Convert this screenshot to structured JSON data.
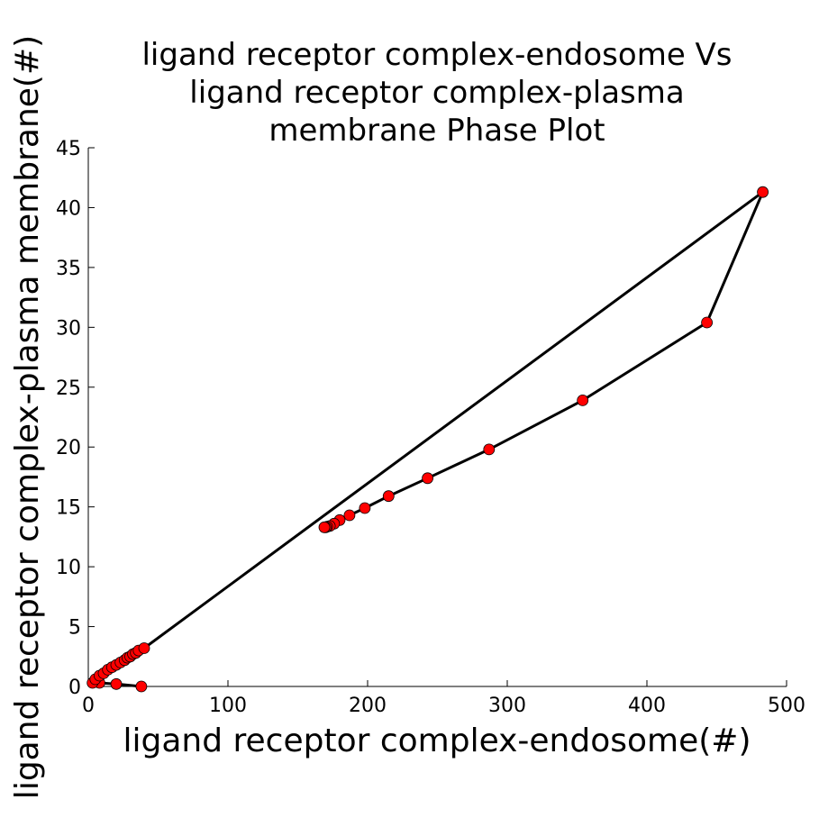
{
  "chart_data": {
    "type": "line",
    "title_lines": [
      "ligand receptor complex-endosome Vs",
      "ligand receptor complex-plasma",
      "membrane Phase Plot"
    ],
    "xlabel": "ligand receptor complex-endosome(#)",
    "ylabel": "ligand receptor complex-plasma membrane(#)",
    "xlim": [
      0,
      500
    ],
    "ylim": [
      0,
      45
    ],
    "xticks": [
      0,
      100,
      200,
      300,
      400,
      500
    ],
    "yticks": [
      0,
      5,
      10,
      15,
      20,
      25,
      30,
      35,
      40,
      45
    ],
    "grid": false,
    "legend": "none",
    "line_color": "#000000",
    "marker_color": "#ff0000",
    "series": [
      {
        "x": [
          38,
          20,
          8,
          3,
          5,
          8,
          11,
          14,
          17,
          20,
          23,
          26,
          28,
          30,
          32,
          34,
          36,
          40,
          483,
          443,
          354,
          287,
          243,
          215,
          198,
          187,
          180,
          176,
          173,
          171,
          170,
          169
        ],
        "y": [
          0,
          0.2,
          0.3,
          0.3,
          0.6,
          0.9,
          1.1,
          1.4,
          1.6,
          1.8,
          2.0,
          2.2,
          2.4,
          2.5,
          2.7,
          2.8,
          3.0,
          3.2,
          41.3,
          30.4,
          23.9,
          19.8,
          17.4,
          15.9,
          14.9,
          14.3,
          13.9,
          13.6,
          13.4,
          13.35,
          13.3,
          13.3
        ]
      }
    ]
  }
}
